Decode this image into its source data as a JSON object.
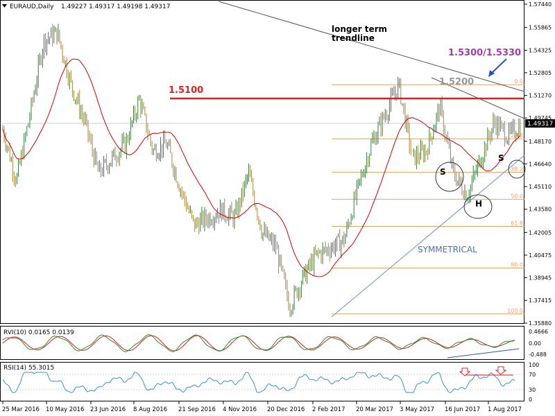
{
  "header": {
    "title": "EURAUD,Daily",
    "ohlc": "1.49227 1.49317 1.49198 1.49317"
  },
  "main_panel": {
    "price_axis_labels": [
      "1.57440",
      "1.55865",
      "1.54325",
      "1.52805",
      "1.51270",
      "1.49745",
      "1.48170",
      "1.46640",
      "1.45110",
      "1.43580",
      "1.42005",
      "1.40475",
      "1.38945",
      "1.37415",
      "1.35880"
    ],
    "current_price": "1.49317",
    "annotations": {
      "resistance_label": "1.5100",
      "trendline_label_1": "longer term",
      "trendline_label_2": "trendline",
      "target_label": "1.5300/1.5330",
      "level_label": "1.5200",
      "pattern_label": "SYMMETRICAL",
      "left_shoulder": "S",
      "head": "H",
      "right_shoulder": "S"
    },
    "fib_levels": [
      {
        "label": "0.0",
        "ratio": 0.0
      },
      {
        "label": "23.6",
        "ratio": 0.236
      },
      {
        "label": "38.2",
        "ratio": 0.382
      },
      {
        "label": "50.0",
        "ratio": 0.5
      },
      {
        "label": "61.8",
        "ratio": 0.618
      },
      {
        "label": "80.0",
        "ratio": 0.8
      },
      {
        "label": "100.0",
        "ratio": 1.0
      }
    ],
    "colors": {
      "bull": "#3a7a4a",
      "bear": "#a88540",
      "ma": "#cc0000",
      "resistance": "#e02020",
      "fib": "#e8a060",
      "trend_down": "#555555",
      "trend_up": "#6a8fd0",
      "target": "#a040a0",
      "level": "#999999",
      "pattern": "#4a6fb0",
      "arrow": "#2255cc"
    }
  },
  "rvi_panel": {
    "title": "RVI(10) 0.0165 0.0139",
    "axis_labels": [
      "0.4666",
      "0.00",
      "-0.488"
    ]
  },
  "rsi_panel": {
    "title": "RSI(14) 55.3015",
    "axis_labels": [
      "100",
      "70",
      "30",
      "0"
    ]
  },
  "date_axis": {
    "labels": [
      "25 Mar 2016",
      "10 May 2016",
      "23 Jun 2016",
      "8 Aug 2016",
      "21 Sep 2016",
      "4 Nov 2016",
      "20 Dec 2016",
      "2 Feb 2017",
      "20 Mar 2017",
      "3 May 2017",
      "16 Jun 2017",
      "1 Aug 2017"
    ]
  },
  "chart_data": {
    "type": "candlestick",
    "symbol": "EURAUD",
    "timeframe": "Daily",
    "ylim": [
      1.3588,
      1.5744
    ],
    "overlay": "moving average",
    "price_path": [
      [
        "25 Mar 2016",
        1.49
      ],
      [
        "10 Apr 2016",
        1.455
      ],
      [
        "25 Apr 2016",
        1.5
      ],
      [
        "10 May 2016",
        1.55
      ],
      [
        "25 May 2016",
        1.555
      ],
      [
        "10 Jun 2016",
        1.52
      ],
      [
        "23 Jun 2016",
        1.495
      ],
      [
        "10 Jul 2016",
        1.46
      ],
      [
        "25 Jul 2016",
        1.47
      ],
      [
        "8 Aug 2016",
        1.48
      ],
      [
        "20 Aug 2016",
        1.51
      ],
      [
        "5 Sep 2016",
        1.475
      ],
      [
        "21 Sep 2016",
        1.48
      ],
      [
        "10 Oct 2016",
        1.45
      ],
      [
        "25 Oct 2016",
        1.425
      ],
      [
        "4 Nov 2016",
        1.43
      ],
      [
        "20 Nov 2016",
        1.435
      ],
      [
        "5 Dec 2016",
        1.43
      ],
      [
        "20 Dec 2016",
        1.46
      ],
      [
        "5 Jan 2017",
        1.42
      ],
      [
        "20 Jan 2017",
        1.41
      ],
      [
        "2 Feb 2017",
        1.37
      ],
      [
        "20 Feb 2017",
        1.39
      ],
      [
        "5 Mar 2017",
        1.405
      ],
      [
        "20 Mar 2017",
        1.41
      ],
      [
        "5 Apr 2017",
        1.415
      ],
      [
        "20 Apr 2017",
        1.45
      ],
      [
        "3 May 2017",
        1.48
      ],
      [
        "15 May 2017",
        1.5
      ],
      [
        "30 May 2017",
        1.52
      ],
      [
        "10 Jun 2017",
        1.47
      ],
      [
        "16 Jun 2017",
        1.475
      ],
      [
        "25 Jun 2017",
        1.505
      ],
      [
        "5 Jul 2017",
        1.46
      ],
      [
        "12 Jul 2017",
        1.445
      ],
      [
        "20 Jul 2017",
        1.47
      ],
      [
        "1 Aug 2017",
        1.495
      ],
      [
        "10 Aug 2017",
        1.485
      ],
      [
        "17 Aug 2017",
        1.4932
      ]
    ],
    "levels": {
      "resistance": 1.51,
      "fib_high": 1.52,
      "fib_low": 1.365
    }
  }
}
